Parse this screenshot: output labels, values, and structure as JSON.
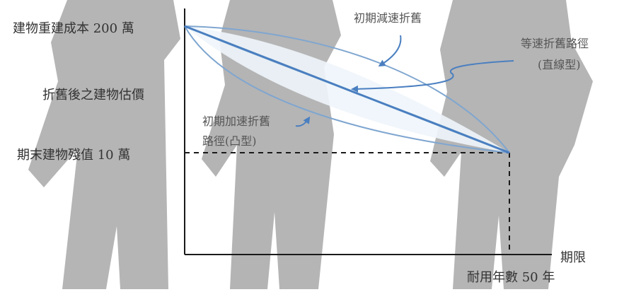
{
  "y_axis": {
    "top_label": "建物重建成本 200 萬",
    "middle_label": "折舊後之建物估價",
    "bottom_label": "期末建物殘值 10 萬"
  },
  "x_axis": {
    "axis_label": "期限",
    "end_label": "耐用年數 50 年"
  },
  "annotations": {
    "decelerated": "初期減速折舊",
    "straight_line_1": "等速折舊路徑",
    "straight_line_2": "(直線型)",
    "accelerated_1": "初期加速折舊",
    "accelerated_2": "路徑(凸型)"
  },
  "colors": {
    "axis": "#1a1a1a",
    "straight_path": "#4a7fc0",
    "curve_paths": "#7fa6d0",
    "silhouette": "#a8a8a8",
    "fill_between": "#eef5fb"
  }
}
